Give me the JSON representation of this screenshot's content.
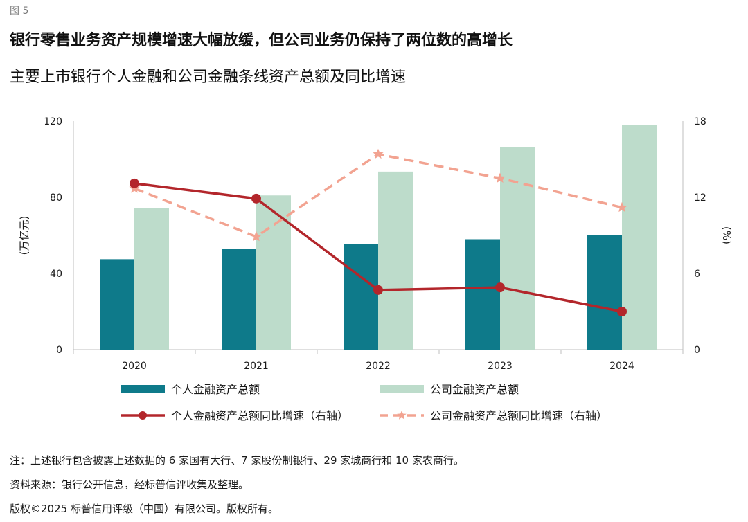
{
  "figure_label": "图 5",
  "title": "银行零售业务资产规模增速大幅放缓，但公司业务仍保持了两位数的高增长",
  "subtitle": "主要上市银行个人金融和公司金融条线资产总额及同比增速",
  "notes": {
    "note": "注：上述银行包含披露上述数据的 6 家国有大行、7 家股份制银行、29 家城商行和 10 家农商行。",
    "source": "资料来源：银行公开信息，经标普信评收集及整理。",
    "copyright": "版权©2025 标普信用评级（中国）有限公司。版权所有。"
  },
  "colors": {
    "personal_bar": "#0e7a8a",
    "corporate_bar": "#bddccb",
    "personal_line": "#b3262b",
    "corporate_line": "#f2a391",
    "axis": "#bfbfbf"
  },
  "chart_data": {
    "type": "bar",
    "categories": [
      "2020",
      "2021",
      "2022",
      "2023",
      "2024"
    ],
    "ylabel": "(万亿元)",
    "y2label": "(%)",
    "ylim": [
      0,
      120
    ],
    "y2lim": [
      0,
      18
    ],
    "yticks": [
      0,
      40,
      80,
      120
    ],
    "y2ticks": [
      0,
      6,
      12,
      18
    ],
    "series": [
      {
        "name": "个人金融资产总额",
        "type": "bar",
        "axis": "left",
        "values": [
          47.5,
          53,
          55.5,
          58,
          60
        ]
      },
      {
        "name": "公司金融资产总额",
        "type": "bar",
        "axis": "left",
        "values": [
          74.5,
          81,
          93.5,
          106.5,
          118
        ]
      },
      {
        "name": "个人金融资产总额同比增速（右轴）",
        "type": "line",
        "axis": "right",
        "values": [
          13.1,
          11.9,
          4.7,
          4.9,
          3.0
        ]
      },
      {
        "name": "公司金融资产总额同比增速（右轴）",
        "type": "line-dashed",
        "axis": "right",
        "values": [
          12.7,
          8.9,
          15.4,
          13.5,
          11.2
        ]
      }
    ]
  }
}
